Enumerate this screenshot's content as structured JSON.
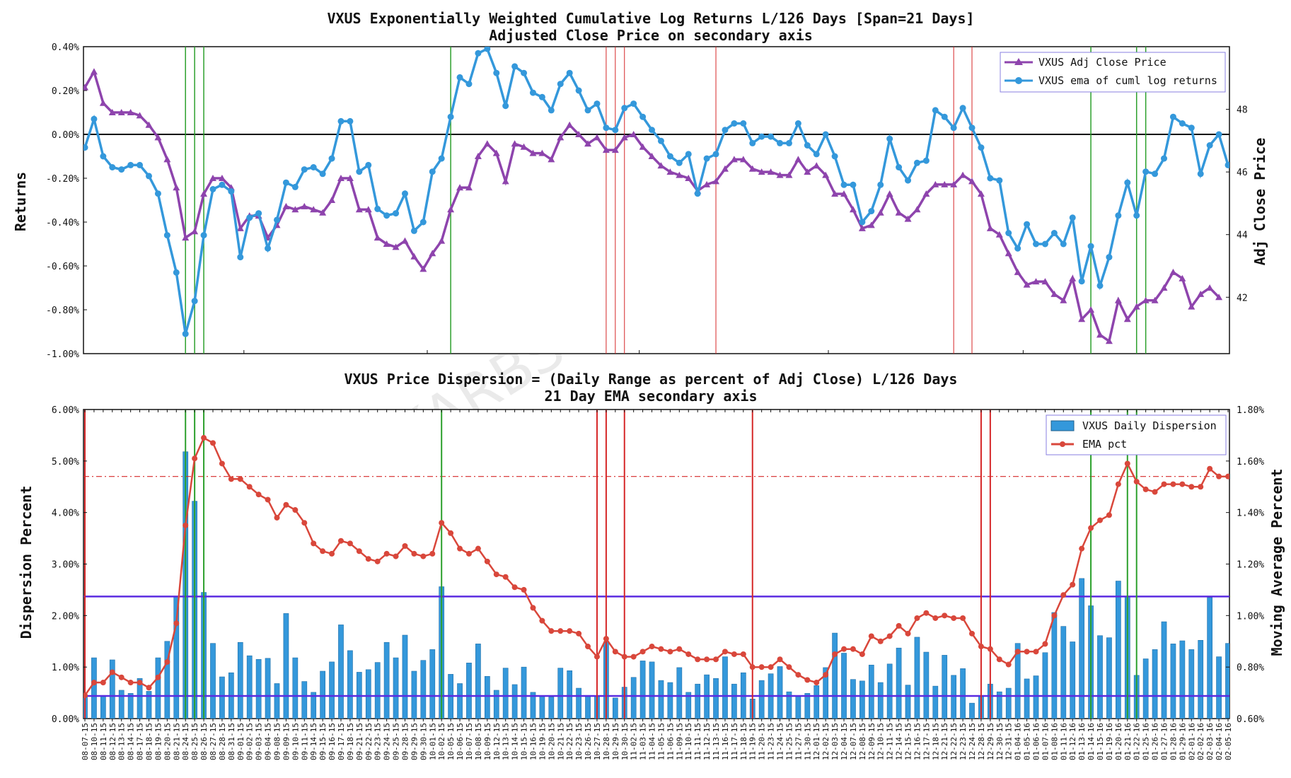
{
  "watermark": "BLACKARBS LLC",
  "colors": {
    "purple": "#8e44ad",
    "blue": "#3498db",
    "red": "#d62728",
    "green": "#2ca02c",
    "hline": "#5b2be0",
    "bars": "#3498db",
    "ema": "#d9473b"
  },
  "chart_data": [
    {
      "type": "line",
      "title": "VXUS Exponentially Weighted Cumulative Log Returns L/126 Days [Span=21 Days]",
      "subtitle": "Adjusted Close Price on secondary axis",
      "ylabel": "Returns",
      "ylabel2": "Adj Close Price",
      "ylim": [
        -1.0,
        0.4
      ],
      "ylim2": [
        40.2,
        50.0
      ],
      "yticks": [
        "0.40%",
        "0.20%",
        "0.00%",
        "-0.20%",
        "-0.40%",
        "-0.60%",
        "-0.80%",
        "-1.00%"
      ],
      "yticks2": [
        "48",
        "46",
        "44",
        "42"
      ],
      "legend": [
        "VXUS Adj Close Price",
        "VXUS ema of cuml log returns"
      ],
      "series": [
        {
          "name": "VXUS ema of cuml log returns",
          "axis": "left",
          "values": [
            -0.06,
            0.07,
            -0.1,
            -0.15,
            -0.16,
            -0.14,
            -0.14,
            -0.19,
            -0.27,
            -0.46,
            -0.63,
            -0.91,
            -0.76,
            -0.46,
            -0.25,
            -0.23,
            -0.26,
            -0.56,
            -0.38,
            -0.36,
            -0.52,
            -0.39,
            -0.22,
            -0.24,
            -0.16,
            -0.15,
            -0.18,
            -0.11,
            0.06,
            0.06,
            -0.17,
            -0.14,
            -0.34,
            -0.37,
            -0.36,
            -0.27,
            -0.44,
            -0.4,
            -0.17,
            -0.11,
            0.08,
            0.26,
            0.23,
            0.37,
            0.39,
            0.28,
            0.13,
            0.31,
            0.28,
            0.19,
            0.17,
            0.11,
            0.23,
            0.28,
            0.2,
            0.11,
            0.14,
            0.03,
            0.02,
            0.12,
            0.14,
            0.08,
            0.02,
            -0.03,
            -0.1,
            -0.13,
            -0.09,
            -0.27,
            -0.11,
            -0.09,
            0.02,
            0.05,
            0.05,
            -0.04,
            -0.01,
            -0.01,
            -0.04,
            -0.04,
            0.05,
            -0.05,
            -0.09,
            0.0,
            -0.1,
            -0.23,
            -0.23,
            -0.4,
            -0.35,
            -0.23,
            -0.02,
            -0.15,
            -0.21,
            -0.13,
            -0.12,
            0.11,
            0.08,
            0.03,
            0.12,
            0.03,
            -0.06,
            -0.2,
            -0.21,
            -0.45,
            -0.52,
            -0.41,
            -0.5,
            -0.5,
            -0.45,
            -0.5,
            -0.38,
            -0.67,
            -0.51,
            -0.69,
            -0.56,
            -0.37,
            -0.22,
            -0.37,
            -0.17,
            -0.18,
            -0.11,
            0.08,
            0.05,
            0.03,
            -0.18,
            -0.05,
            0.0,
            -0.14
          ]
        },
        {
          "name": "VXUS Adj Close Price",
          "axis": "right",
          "values": [
            48.7,
            49.2,
            48.2,
            47.9,
            47.9,
            47.9,
            47.8,
            47.5,
            47.1,
            46.4,
            45.5,
            43.9,
            44.1,
            45.3,
            45.8,
            45.8,
            45.5,
            44.2,
            44.6,
            44.6,
            43.9,
            44.3,
            44.9,
            44.8,
            44.9,
            44.8,
            44.7,
            45.1,
            45.8,
            45.8,
            44.8,
            44.8,
            43.9,
            43.7,
            43.6,
            43.8,
            43.3,
            42.9,
            43.4,
            43.8,
            44.8,
            45.5,
            45.5,
            46.5,
            46.9,
            46.6,
            45.7,
            46.9,
            46.8,
            46.6,
            46.6,
            46.4,
            47.1,
            47.5,
            47.2,
            46.9,
            47.1,
            46.7,
            46.7,
            47.1,
            47.2,
            46.8,
            46.5,
            46.2,
            46.0,
            45.9,
            45.8,
            45.4,
            45.6,
            45.7,
            46.1,
            46.4,
            46.4,
            46.1,
            46.0,
            46.0,
            45.9,
            45.9,
            46.4,
            46.0,
            46.2,
            45.9,
            45.3,
            45.3,
            44.8,
            44.2,
            44.3,
            44.7,
            45.3,
            44.7,
            44.5,
            44.8,
            45.3,
            45.6,
            45.6,
            45.6,
            45.9,
            45.7,
            45.3,
            44.2,
            44.0,
            43.4,
            42.8,
            42.4,
            42.5,
            42.5,
            42.1,
            41.9,
            42.6,
            41.3,
            41.6,
            40.8,
            40.6,
            41.9,
            41.3,
            41.7,
            41.9,
            41.9,
            42.3,
            42.8,
            42.6,
            41.7,
            42.1,
            42.3,
            42.0
          ]
        }
      ],
      "vlines_green": [
        11,
        12,
        13,
        40,
        110,
        115,
        116
      ],
      "vlines_red": [
        57,
        58,
        59,
        69,
        95,
        97
      ]
    },
    {
      "type": "bar",
      "title": "VXUS Price Dispersion = (Daily Range as percent of Adj Close) L/126 Days",
      "subtitle": "21 Day EMA secondary axis",
      "ylabel": "Dispersion Percent",
      "ylabel2": "Moving Average Percent",
      "ylim": [
        0,
        6
      ],
      "ylim2": [
        0.6,
        1.8
      ],
      "yticks": [
        "6.00%",
        "5.00%",
        "4.00%",
        "3.00%",
        "2.00%",
        "1.00%",
        "0.00%"
      ],
      "yticks2": [
        "1.80%",
        "1.60%",
        "1.40%",
        "1.20%",
        "1.00%",
        "0.80%",
        "0.60%"
      ],
      "legend": [
        "VXUS Daily Dispersion",
        "EMA pct"
      ],
      "hlines": [
        2.37,
        0.44
      ],
      "hline_ema_dashdot": 1.54,
      "categories": [
        "08-07-15",
        "08-10-15",
        "08-11-15",
        "08-12-15",
        "08-13-15",
        "08-14-15",
        "08-17-15",
        "08-18-15",
        "08-19-15",
        "08-20-15",
        "08-21-15",
        "08-24-15",
        "08-25-15",
        "08-26-15",
        "08-27-15",
        "08-28-15",
        "08-31-15",
        "09-01-15",
        "09-02-15",
        "09-03-15",
        "09-04-15",
        "09-08-15",
        "09-09-15",
        "09-10-15",
        "09-11-15",
        "09-14-15",
        "09-15-15",
        "09-16-15",
        "09-17-15",
        "09-18-15",
        "09-21-15",
        "09-22-15",
        "09-23-15",
        "09-24-15",
        "09-25-15",
        "09-28-15",
        "09-29-15",
        "09-30-15",
        "10-01-15",
        "10-02-15",
        "10-05-15",
        "10-06-15",
        "10-07-15",
        "10-08-15",
        "10-09-15",
        "10-12-15",
        "10-13-15",
        "10-14-15",
        "10-15-15",
        "10-16-15",
        "10-19-15",
        "10-20-15",
        "10-21-15",
        "10-22-15",
        "10-23-15",
        "10-26-15",
        "10-27-15",
        "10-28-15",
        "10-29-15",
        "10-30-15",
        "11-02-15",
        "11-03-15",
        "11-04-15",
        "11-05-15",
        "11-06-15",
        "11-09-15",
        "11-10-15",
        "11-11-15",
        "11-12-15",
        "11-13-15",
        "11-16-15",
        "11-17-15",
        "11-18-15",
        "11-19-15",
        "11-20-15",
        "11-23-15",
        "11-24-15",
        "11-25-15",
        "11-27-15",
        "11-30-15",
        "12-01-15",
        "12-02-15",
        "12-03-15",
        "12-04-15",
        "12-07-15",
        "12-08-15",
        "12-09-15",
        "12-10-15",
        "12-11-15",
        "12-14-15",
        "12-15-15",
        "12-16-15",
        "12-17-15",
        "12-18-15",
        "12-21-15",
        "12-22-15",
        "12-23-15",
        "12-24-15",
        "12-28-15",
        "12-29-15",
        "12-30-15",
        "12-31-15",
        "01-04-16",
        "01-05-16",
        "01-06-16",
        "01-07-16",
        "01-08-16",
        "01-11-16",
        "01-12-16",
        "01-13-16",
        "01-14-16",
        "01-15-16",
        "01-19-16",
        "01-20-16",
        "01-21-16",
        "01-22-16",
        "01-25-16",
        "01-26-16",
        "01-27-16",
        "01-28-16",
        "01-29-16",
        "02-01-16",
        "02-02-16",
        "02-03-16",
        "02-04-16",
        "02-05-16"
      ],
      "series": [
        {
          "name": "VXUS Daily Dispersion",
          "axis": "left",
          "values": [
            0.45,
            1.18,
            0.45,
            1.14,
            0.55,
            0.49,
            0.78,
            0.53,
            1.18,
            1.5,
            2.36,
            5.18,
            4.22,
            2.45,
            1.46,
            0.81,
            0.89,
            1.48,
            1.22,
            1.15,
            1.17,
            0.68,
            2.04,
            1.18,
            0.72,
            0.51,
            0.92,
            1.1,
            1.82,
            1.32,
            0.9,
            0.95,
            1.09,
            1.48,
            1.18,
            1.62,
            0.92,
            1.13,
            1.34,
            2.56,
            0.86,
            0.68,
            1.08,
            1.45,
            0.82,
            0.55,
            0.98,
            0.66,
            1.0,
            0.51,
            0.43,
            0.42,
            0.98,
            0.93,
            0.59,
            0.45,
            0.44,
            1.49,
            0.4,
            0.61,
            0.8,
            1.12,
            1.1,
            0.74,
            0.7,
            0.99,
            0.51,
            0.67,
            0.85,
            0.78,
            1.2,
            0.67,
            0.89,
            0.38,
            0.74,
            0.87,
            1.01,
            0.52,
            0.44,
            0.49,
            0.64,
            0.99,
            1.66,
            1.27,
            0.76,
            0.73,
            1.04,
            0.7,
            1.06,
            1.37,
            0.65,
            1.58,
            1.29,
            0.63,
            1.23,
            0.84,
            0.97,
            0.3,
            0.45,
            0.67,
            0.52,
            0.59,
            1.46,
            0.77,
            0.83,
            1.28,
            2.06,
            1.79,
            1.49,
            2.72,
            2.19,
            1.61,
            1.57,
            2.67,
            2.37,
            0.84,
            1.16,
            1.34,
            1.88,
            1.45,
            1.51,
            1.34,
            1.52,
            2.35,
            1.2,
            1.46
          ]
        },
        {
          "name": "EMA pct",
          "axis": "right",
          "values": [
            0.69,
            0.74,
            0.74,
            0.78,
            0.76,
            0.74,
            0.74,
            0.72,
            0.76,
            0.82,
            0.97,
            1.35,
            1.61,
            1.69,
            1.67,
            1.59,
            1.53,
            1.53,
            1.5,
            1.47,
            1.45,
            1.38,
            1.43,
            1.41,
            1.36,
            1.28,
            1.25,
            1.24,
            1.29,
            1.28,
            1.25,
            1.22,
            1.21,
            1.24,
            1.23,
            1.27,
            1.24,
            1.23,
            1.24,
            1.36,
            1.32,
            1.26,
            1.24,
            1.26,
            1.21,
            1.16,
            1.15,
            1.11,
            1.1,
            1.03,
            0.98,
            0.94,
            0.94,
            0.94,
            0.93,
            0.88,
            0.84,
            0.91,
            0.86,
            0.84,
            0.84,
            0.86,
            0.88,
            0.87,
            0.86,
            0.87,
            0.85,
            0.83,
            0.83,
            0.83,
            0.86,
            0.85,
            0.85,
            0.8,
            0.8,
            0.8,
            0.83,
            0.8,
            0.77,
            0.75,
            0.74,
            0.77,
            0.85,
            0.87,
            0.87,
            0.85,
            0.92,
            0.9,
            0.92,
            0.96,
            0.93,
            0.99,
            1.01,
            0.99,
            1.0,
            0.99,
            0.99,
            0.93,
            0.88,
            0.87,
            0.83,
            0.81,
            0.86,
            0.86,
            0.86,
            0.89,
            1.0,
            1.08,
            1.12,
            1.26,
            1.34,
            1.37,
            1.39,
            1.51,
            1.59,
            1.52,
            1.49,
            1.48,
            1.51,
            1.51,
            1.51,
            1.5,
            1.5,
            1.57,
            1.54,
            1.54
          ]
        }
      ],
      "vlines_green": [
        11,
        12,
        13,
        39,
        110,
        114,
        115
      ],
      "vlines_red": [
        0,
        56,
        57,
        59,
        73,
        98,
        99
      ]
    }
  ]
}
